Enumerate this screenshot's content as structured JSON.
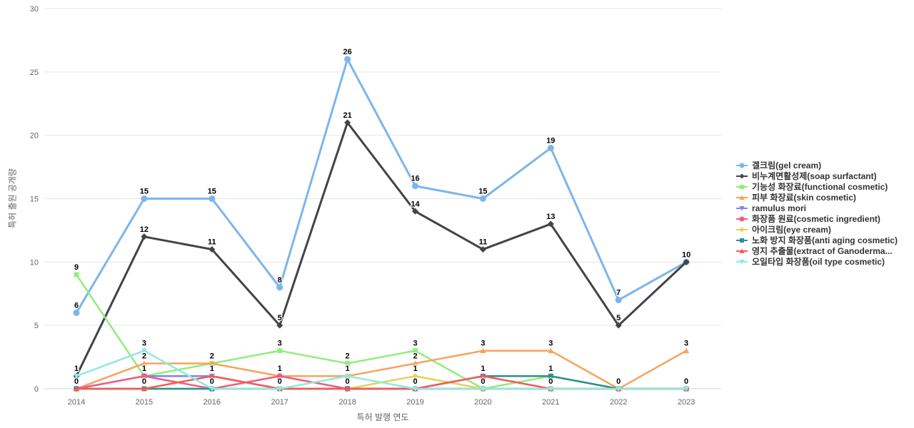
{
  "chart_data": {
    "type": "line",
    "x": [
      2014,
      2015,
      2016,
      2017,
      2018,
      2019,
      2020,
      2021,
      2022,
      2023
    ],
    "xlabel": "특허 발행 연도",
    "ylabel": "특허 출원 공개량",
    "ylim": [
      0,
      30
    ],
    "yticks": [
      0,
      5,
      10,
      15,
      20,
      25,
      30
    ],
    "grid": true,
    "legend_position": "right",
    "axis_text_color": "#666666",
    "gridline_color": "#e6e6e6",
    "axis_line_color": "#ccd6eb",
    "data_label_color": "#000000",
    "series": [
      {
        "name": "겔크림(gel cream)",
        "color": "#7cb5ec",
        "marker": "circle",
        "values": [
          6,
          15,
          15,
          8,
          26,
          16,
          15,
          19,
          7,
          10
        ]
      },
      {
        "name": "비누계면활성제(soap surfactant)",
        "color": "#434348",
        "marker": "diamond",
        "values": [
          1,
          12,
          11,
          5,
          21,
          14,
          11,
          13,
          5,
          10
        ]
      },
      {
        "name": "기능성 화장료(functional cosmetic)",
        "color": "#90ed7d",
        "marker": "square",
        "values": [
          9,
          1,
          2,
          3,
          2,
          3,
          0,
          1,
          0,
          0
        ]
      },
      {
        "name": "피부 화장료(skin cosmetic)",
        "color": "#f7a35c",
        "marker": "triangle",
        "values": [
          0,
          2,
          2,
          1,
          1,
          2,
          3,
          3,
          0,
          3
        ]
      },
      {
        "name": "ramulus mori",
        "color": "#8085e9",
        "marker": "triangle-down",
        "values": [
          0,
          1,
          1,
          0,
          0,
          0,
          0,
          0,
          0,
          0
        ]
      },
      {
        "name": "화장품 원료(cosmetic ingredient)",
        "color": "#f15c80",
        "marker": "circle",
        "values": [
          0,
          1,
          0,
          1,
          0,
          0,
          0,
          0,
          0,
          0
        ]
      },
      {
        "name": "아이크림(eye cream)",
        "color": "#e4d354",
        "marker": "diamond",
        "values": [
          0,
          0,
          0,
          0,
          0,
          1,
          0,
          0,
          0,
          0
        ]
      },
      {
        "name": "노화 방지 화장품(anti aging cosmetic)",
        "color": "#2b908f",
        "marker": "square",
        "values": [
          0,
          0,
          0,
          0,
          0,
          0,
          1,
          1,
          0,
          0
        ]
      },
      {
        "name": "영지 추출물(extract of Ganoderma...",
        "color": "#f45b5b",
        "marker": "triangle",
        "values": [
          0,
          0,
          1,
          0,
          0,
          0,
          1,
          0,
          0,
          0
        ]
      },
      {
        "name": "오일타입 화장품(oil type cosmetic)",
        "color": "#91e8e1",
        "marker": "triangle-down",
        "values": [
          1,
          3,
          0,
          0,
          1,
          0,
          0,
          0,
          0,
          0
        ]
      }
    ]
  }
}
